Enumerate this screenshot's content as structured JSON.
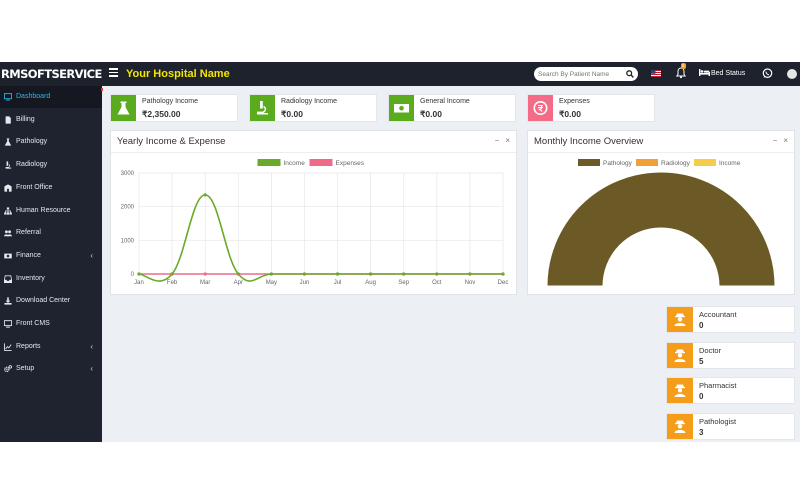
{
  "header": {
    "brand": "RMSOFTSERVICES",
    "hospital_name": "Your Hospital Name",
    "search_placeholder": "Search By Patient Name",
    "notification_count": "5",
    "bed_status": "Bed Status"
  },
  "sidebar": {
    "items": [
      {
        "label": "Dashboard",
        "icon": "dashboard-icon",
        "active": true
      },
      {
        "label": "Billing",
        "icon": "file-icon"
      },
      {
        "label": "Pathology",
        "icon": "flask-icon"
      },
      {
        "label": "Radiology",
        "icon": "microscope-icon"
      },
      {
        "label": "Front Office",
        "icon": "building-icon"
      },
      {
        "label": "Human Resource",
        "icon": "sitemap-icon"
      },
      {
        "label": "Referral",
        "icon": "users-icon"
      },
      {
        "label": "Finance",
        "icon": "money-icon",
        "caret": "‹"
      },
      {
        "label": "Inventory",
        "icon": "inbox-icon"
      },
      {
        "label": "Download Center",
        "icon": "download-icon"
      },
      {
        "label": "Front CMS",
        "icon": "desktop-icon"
      },
      {
        "label": "Reports",
        "icon": "line-chart-icon",
        "caret": "‹"
      },
      {
        "label": "Setup",
        "icon": "gears-icon",
        "caret": "‹"
      }
    ]
  },
  "income_boxes": [
    {
      "title": "Pathology Income",
      "value": "₹2,350.00",
      "color": "#5aab1e",
      "icon": "flask-icon"
    },
    {
      "title": "Radiology Income",
      "value": "₹0.00",
      "color": "#5aab1e",
      "icon": "microscope-icon"
    },
    {
      "title": "General Income",
      "value": "₹0.00",
      "color": "#5aab1e",
      "icon": "money-icon"
    },
    {
      "title": "Expenses",
      "value": "₹0.00",
      "color": "#f36b87",
      "icon": "expense-icon"
    }
  ],
  "yearly_panel": {
    "title": "Yearly Income & Expense",
    "minimize": "−",
    "close": "×"
  },
  "monthly_panel": {
    "title": "Monthly Income Overview",
    "minimize": "−",
    "close": "×"
  },
  "chart_data": [
    {
      "type": "line",
      "title": "Yearly Income & Expense",
      "categories": [
        "Jan",
        "Feb",
        "Mar",
        "Apr",
        "May",
        "Jun",
        "Jul",
        "Aug",
        "Sep",
        "Oct",
        "Nov",
        "Dec"
      ],
      "series": [
        {
          "name": "Income",
          "color": "#6aaa2a",
          "values": [
            0,
            0,
            2350,
            0,
            0,
            0,
            0,
            0,
            0,
            0,
            0,
            0
          ]
        },
        {
          "name": "Expenses",
          "color": "#f06a8a",
          "values": [
            0,
            0,
            0,
            0,
            0,
            0,
            0,
            0,
            0,
            0,
            0,
            0
          ]
        }
      ],
      "ylim": [
        0,
        3000
      ],
      "yticks": [
        0,
        1000,
        2000,
        3000
      ],
      "grid": true,
      "legend": "top-center"
    },
    {
      "type": "pie",
      "subtype": "half-doughnut",
      "title": "Monthly Income Overview",
      "labels": [
        "Pathology",
        "Radiology",
        "Income"
      ],
      "colors": [
        "#6b5a26",
        "#f0a038",
        "#f5cd48"
      ],
      "values": [
        2350,
        0,
        0
      ],
      "legend": "top-center"
    }
  ],
  "staff": [
    {
      "role": "Accountant",
      "count": "0",
      "icon": "user-secret-icon"
    },
    {
      "role": "Doctor",
      "count": "5",
      "icon": "user-secret-icon"
    },
    {
      "role": "Pharmacist",
      "count": "0",
      "icon": "user-secret-icon"
    },
    {
      "role": "Pathologist",
      "count": "3",
      "icon": "user-secret-icon"
    }
  ]
}
